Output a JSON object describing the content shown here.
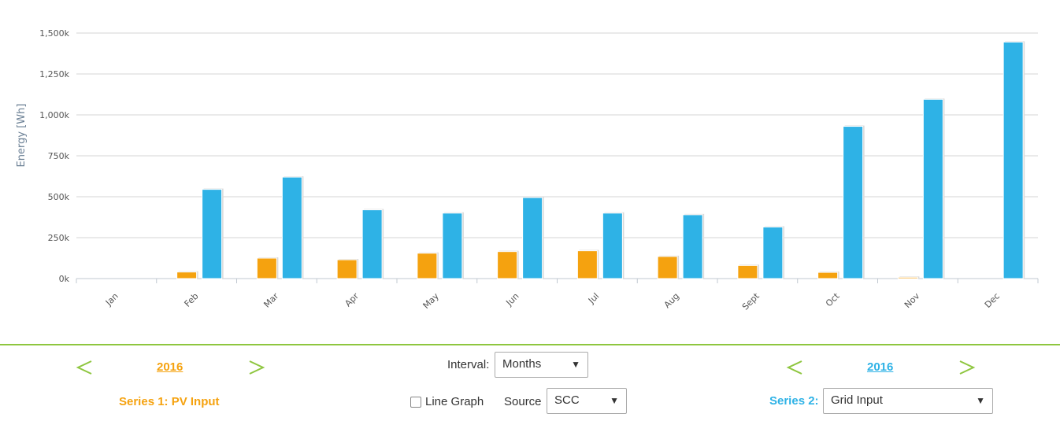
{
  "chart_data": {
    "type": "bar",
    "ylabel": "Energy [Wh]",
    "yticks": [
      "0k",
      "250k",
      "500k",
      "750k",
      "1,000k",
      "1,250k",
      "1,500k"
    ],
    "ylim": [
      0,
      1500000
    ],
    "grid": true,
    "categories": [
      "Jan",
      "Feb",
      "Mar",
      "Apr",
      "May",
      "Jun",
      "Jul",
      "Aug",
      "Sept",
      "Oct",
      "Nov",
      "Dec"
    ],
    "series": [
      {
        "name": "PV Input",
        "color": "#f5a20f",
        "values": [
          0,
          40000,
          125000,
          115000,
          155000,
          165000,
          170000,
          135000,
          80000,
          38000,
          8000,
          0
        ]
      },
      {
        "name": "Grid Input",
        "color": "#2eb2e6",
        "values": [
          0,
          545000,
          620000,
          420000,
          400000,
          495000,
          400000,
          390000,
          315000,
          930000,
          1095000,
          1445000
        ]
      }
    ]
  },
  "controls": {
    "series1": {
      "year": "2016",
      "label": "Series 1: PV Input",
      "color": "#f5a20f"
    },
    "series2": {
      "year": "2016",
      "label": "Series 2:",
      "color": "#2eb2e6",
      "select_value": "Grid Input"
    },
    "interval": {
      "label": "Interval:",
      "value": "Months"
    },
    "line_graph": {
      "label": "Line Graph",
      "checked": false
    },
    "source": {
      "label": "Source",
      "value": "SCC"
    },
    "caret": "▼",
    "arrow_color": "#8ec63f"
  }
}
